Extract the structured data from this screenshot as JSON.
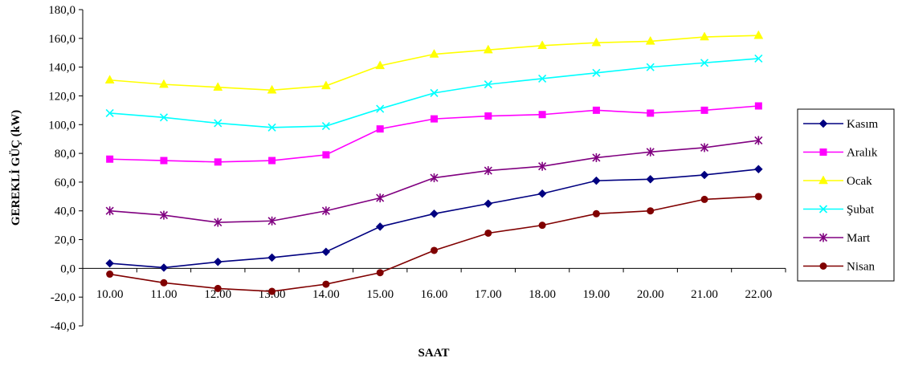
{
  "chart_data": {
    "type": "line",
    "title": "",
    "xlabel": "SAAT",
    "ylabel": "GEREKLİ GÜÇ (kW)",
    "ylim": [
      -40,
      180
    ],
    "ytick_step": 20,
    "ytick_labels": [
      "-40,0",
      "-20,0",
      "0,0",
      "20,0",
      "40,0",
      "60,0",
      "80,0",
      "100,0",
      "120,0",
      "140,0",
      "160,0",
      "180,0"
    ],
    "categories": [
      "10.00",
      "11.00",
      "12.00",
      "13.00",
      "14.00",
      "15.00",
      "16.00",
      "17.00",
      "18.00",
      "19.00",
      "20.00",
      "21.00",
      "22.00"
    ],
    "grid": false,
    "legend_position": "right",
    "series": [
      {
        "name": "Kasım",
        "color": "#000080",
        "marker": "diamond",
        "values": [
          3.5,
          0.5,
          4.5,
          7.5,
          11.5,
          29,
          38,
          45,
          52,
          61,
          62,
          65,
          69
        ]
      },
      {
        "name": "Aralık",
        "color": "#FF00FF",
        "marker": "square",
        "values": [
          76,
          75,
          74,
          75,
          79,
          97,
          104,
          106,
          107,
          110,
          108,
          110,
          113
        ]
      },
      {
        "name": "Ocak",
        "color": "#FFFF00",
        "marker": "triangle",
        "values": [
          131,
          128,
          126,
          124,
          127,
          141,
          149,
          152,
          155,
          157,
          158,
          161,
          162
        ]
      },
      {
        "name": "Şubat",
        "color": "#00FFFF",
        "marker": "x",
        "values": [
          108,
          105,
          101,
          98,
          99,
          111,
          122,
          128,
          132,
          136,
          140,
          143,
          146
        ]
      },
      {
        "name": "Mart",
        "color": "#800080",
        "marker": "star",
        "values": [
          40,
          37,
          32,
          33,
          40,
          49,
          63,
          68,
          71,
          77,
          81,
          84,
          89
        ]
      },
      {
        "name": "Nisan",
        "color": "#800000",
        "marker": "circle",
        "values": [
          -4,
          -10,
          -14,
          -16,
          -11,
          -3,
          12.5,
          24.5,
          30,
          38,
          40,
          48,
          50
        ]
      }
    ]
  }
}
